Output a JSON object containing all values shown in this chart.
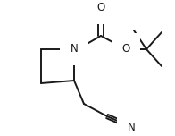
{
  "bg_color": "#ffffff",
  "line_color": "#1a1a1a",
  "line_width": 1.4,
  "figsize": [
    1.96,
    1.52
  ],
  "dpi": 100,
  "N_label": "N",
  "O_carbonyl_label": "O",
  "O_ester_label": "O",
  "N_nitrile_label": "N",
  "font_size": 8.5
}
